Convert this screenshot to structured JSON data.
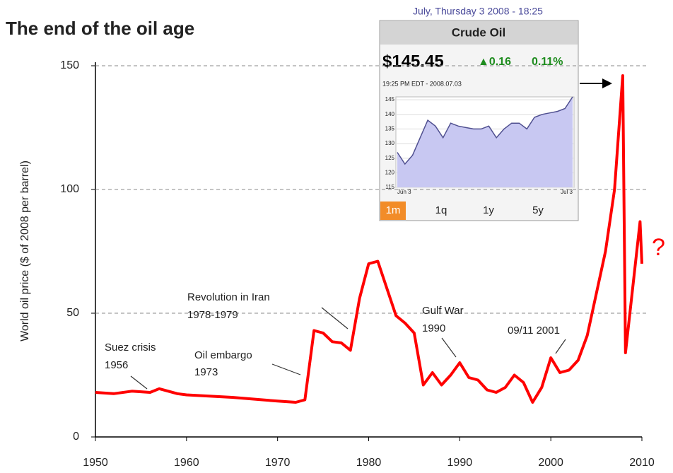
{
  "chart_data": [
    {
      "type": "line",
      "title": "The end of the oil age",
      "ylabel": "World oil price ($ of 2008 per barrel)",
      "x": [
        1950,
        1952,
        1954,
        1956,
        1957,
        1959,
        1960,
        1965,
        1970,
        1972,
        1973,
        1974,
        1975,
        1976,
        1977,
        1978,
        1979,
        1980,
        1981,
        1982,
        1983,
        1984,
        1985,
        1986,
        1987,
        1988,
        1989,
        1990,
        1991,
        1992,
        1993,
        1994,
        1995,
        1996,
        1997,
        1998,
        1999,
        2000,
        2001,
        2002,
        2003,
        2004,
        2005,
        2006,
        2007,
        2007.9,
        2008.2,
        2009.8,
        2010
      ],
      "values": [
        18,
        17.5,
        18.5,
        18,
        19.5,
        17.5,
        17,
        16,
        14.5,
        14,
        15,
        43,
        42,
        38.5,
        38,
        35,
        56,
        70,
        71,
        60,
        49,
        46,
        42,
        21,
        26,
        21,
        25,
        30,
        24,
        23,
        19,
        18,
        20,
        25,
        22,
        14,
        20,
        32,
        26,
        27,
        31,
        41,
        58,
        75,
        100,
        146,
        34,
        87,
        70
      ],
      "color": "#ff0000",
      "xlim": [
        1950,
        2010
      ],
      "xticks": [
        1950,
        1960,
        1970,
        1980,
        1990,
        2000,
        2010
      ],
      "ylim": [
        0,
        150
      ],
      "yticks": [
        0,
        50,
        100,
        150
      ],
      "grid": true,
      "annotations": [
        {
          "lines": [
            "Suez crisis",
            "1956"
          ]
        },
        {
          "lines": [
            "Oil embargo",
            "1973"
          ]
        },
        {
          "lines": [
            "Revolution in Iran",
            "1978-1979"
          ]
        },
        {
          "lines": [
            "Gulf War",
            "1990"
          ]
        },
        {
          "lines": [
            "09/11 2001"
          ]
        },
        {
          "lines": [
            "?"
          ]
        }
      ]
    },
    {
      "type": "area",
      "caption": "July, Thursday 3 2008 - 18:25",
      "title": "Crude Oil",
      "price": "$145.45",
      "change": "▲0.16",
      "change_pct": "0.11%",
      "subtitle": "19:25 PM EDT - 2008.07.03",
      "categories": [
        "Jun 3",
        null,
        null,
        null,
        null,
        null,
        null,
        null,
        null,
        null,
        null,
        null,
        null,
        null,
        null,
        null,
        null,
        null,
        null,
        null,
        null,
        null,
        null,
        "Jul 3"
      ],
      "values": [
        127,
        123,
        126,
        132,
        138,
        136,
        132,
        137,
        136,
        135.5,
        135,
        135,
        136,
        132,
        135,
        137,
        137,
        135,
        139,
        140,
        140.5,
        141,
        142,
        146
      ],
      "color": "#505090",
      "ylim": [
        115,
        146
      ],
      "yticks": [
        115,
        120,
        125,
        130,
        135,
        140,
        145
      ],
      "buttons": [
        "1m",
        "1q",
        "1y",
        "5y"
      ]
    }
  ]
}
